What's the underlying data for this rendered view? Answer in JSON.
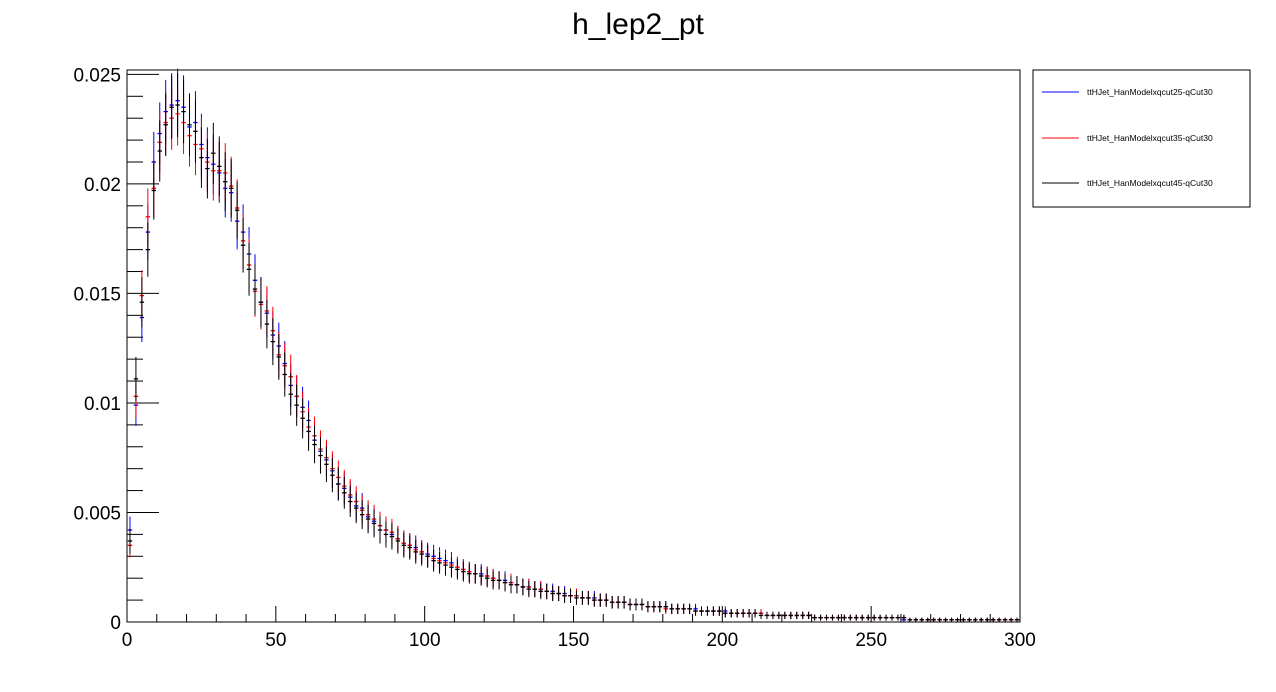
{
  "chart_data": {
    "type": "scatter",
    "title": "h_lep2_pt",
    "xlabel": "",
    "ylabel": "",
    "xlim": [
      0,
      300
    ],
    "ylim": [
      0,
      0.0252
    ],
    "x_ticks": [
      {
        "value": 0,
        "label": "0"
      },
      {
        "value": 50,
        "label": "50"
      },
      {
        "value": 100,
        "label": "100"
      },
      {
        "value": 150,
        "label": "150"
      },
      {
        "value": 200,
        "label": "200"
      },
      {
        "value": 250,
        "label": "250"
      },
      {
        "value": 300,
        "label": "300"
      }
    ],
    "y_ticks": [
      {
        "value": 0,
        "label": "0"
      },
      {
        "value": 0.005,
        "label": "0.005"
      },
      {
        "value": 0.01,
        "label": "0.01"
      },
      {
        "value": 0.015,
        "label": "0.015"
      },
      {
        "value": 0.02,
        "label": "0.02"
      },
      {
        "value": 0.025,
        "label": "0.025"
      }
    ],
    "grid": false,
    "legend_position": "right",
    "x_bin_start": 1,
    "x_bin_width": 2,
    "series": [
      {
        "name": "ttHJet_HanModelxqcut25-qCut30",
        "color": "#0000ff",
        "values": [
          0.0042,
          0.0099,
          0.0139,
          0.0178,
          0.021,
          0.0223,
          0.0233,
          0.0236,
          0.0238,
          0.0235,
          0.0226,
          0.0228,
          0.0218,
          0.0212,
          0.0209,
          0.0205,
          0.0198,
          0.0196,
          0.0183,
          0.0178,
          0.0168,
          0.0156,
          0.0146,
          0.0141,
          0.0131,
          0.0126,
          0.0118,
          0.0108,
          0.0103,
          0.0098,
          0.0092,
          0.0083,
          0.0078,
          0.0074,
          0.0069,
          0.0063,
          0.0061,
          0.0057,
          0.0053,
          0.0052,
          0.0048,
          0.0046,
          0.0044,
          0.0042,
          0.004,
          0.0038,
          0.0036,
          0.0035,
          0.0034,
          0.0032,
          0.0031,
          0.003,
          0.0029,
          0.0028,
          0.0027,
          0.0025,
          0.0024,
          0.0023,
          0.0022,
          0.0022,
          0.0021,
          0.002,
          0.0019,
          0.0019,
          0.0018,
          0.0017,
          0.0016,
          0.0016,
          0.0015,
          0.0015,
          0.0014,
          0.0014,
          0.0013,
          0.0013,
          0.0012,
          0.0012,
          0.0011,
          0.0011,
          0.0011,
          0.001,
          0.001,
          0.0009,
          0.0009,
          0.0009,
          0.0008,
          0.0008,
          0.0008,
          0.0007,
          0.0007,
          0.0007,
          0.0007,
          0.0006,
          0.0006,
          0.0006,
          0.0006,
          0.0006,
          0.0005,
          0.0005,
          0.0005,
          0.0005,
          0.0005,
          0.0004,
          0.0004,
          0.0004,
          0.0004,
          0.0004,
          0.0004,
          0.0003,
          0.0003,
          0.0003,
          0.0003,
          0.0003,
          0.0003,
          0.0003,
          0.0003,
          0.0002,
          0.0002,
          0.0002,
          0.0002,
          0.0002,
          0.0002,
          0.0002,
          0.0002,
          0.0002,
          0.0002,
          0.0002,
          0.0002,
          0.0002,
          0.0002,
          0.0002,
          0.0001,
          0.0001,
          0.0001,
          0.0001,
          0.0001,
          0.0001,
          0.0001,
          0.0001,
          0.0001,
          0.0001,
          0.0001,
          0.0001,
          0.0001,
          0.0001,
          0.0001,
          0.0001,
          0.0001,
          0.0001,
          0.0001,
          0.0001
        ]
      },
      {
        "name": "ttHJet_HanModelxqcut35-qCut30",
        "color": "#ff0000",
        "values": [
          0.0035,
          0.0103,
          0.0149,
          0.0185,
          0.0198,
          0.0219,
          0.0228,
          0.023,
          0.0232,
          0.0228,
          0.0222,
          0.0218,
          0.0216,
          0.021,
          0.0206,
          0.0206,
          0.0205,
          0.0199,
          0.0189,
          0.0174,
          0.0163,
          0.0151,
          0.0145,
          0.0142,
          0.0133,
          0.0122,
          0.0117,
          0.0112,
          0.0103,
          0.0096,
          0.0089,
          0.0085,
          0.0079,
          0.0075,
          0.007,
          0.0066,
          0.0062,
          0.0058,
          0.0055,
          0.0051,
          0.0049,
          0.0047,
          0.0044,
          0.0042,
          0.0041,
          0.0038,
          0.0036,
          0.0035,
          0.0033,
          0.0032,
          0.003,
          0.0029,
          0.0028,
          0.0027,
          0.0026,
          0.0025,
          0.0024,
          0.0023,
          0.0022,
          0.0021,
          0.0021,
          0.002,
          0.0019,
          0.0018,
          0.0018,
          0.0017,
          0.0016,
          0.0016,
          0.0015,
          0.0015,
          0.0014,
          0.0013,
          0.0013,
          0.0012,
          0.0012,
          0.0012,
          0.0011,
          0.0011,
          0.001,
          0.001,
          0.001,
          0.0009,
          0.0009,
          0.0009,
          0.0008,
          0.0008,
          0.0008,
          0.0007,
          0.0007,
          0.0007,
          0.0006,
          0.0006,
          0.0006,
          0.0006,
          0.0006,
          0.0005,
          0.0005,
          0.0005,
          0.0005,
          0.0005,
          0.0004,
          0.0004,
          0.0004,
          0.0004,
          0.0004,
          0.0004,
          0.0004,
          0.0003,
          0.0003,
          0.0003,
          0.0003,
          0.0003,
          0.0003,
          0.0003,
          0.0003,
          0.0002,
          0.0002,
          0.0002,
          0.0002,
          0.0002,
          0.0002,
          0.0002,
          0.0002,
          0.0002,
          0.0002,
          0.0002,
          0.0002,
          0.0002,
          0.0002,
          0.0002,
          0.0002,
          0.0001,
          0.0001,
          0.0001,
          0.0001,
          0.0001,
          0.0001,
          0.0001,
          0.0001,
          0.0001,
          0.0001,
          0.0001,
          0.0001,
          0.0001,
          0.0001,
          0.0001,
          0.0001,
          0.0001,
          0.0001,
          0.0001
        ]
      },
      {
        "name": "ttHJet_HanModelxqcut45-qCut30",
        "color": "#000000",
        "values": [
          0.0037,
          0.0111,
          0.0146,
          0.017,
          0.0197,
          0.0215,
          0.0227,
          0.0235,
          0.0236,
          0.0233,
          0.0227,
          0.0224,
          0.0212,
          0.0207,
          0.0214,
          0.0208,
          0.0201,
          0.0198,
          0.0188,
          0.0172,
          0.0161,
          0.0152,
          0.0146,
          0.0136,
          0.0128,
          0.0121,
          0.0113,
          0.0104,
          0.0099,
          0.0093,
          0.0087,
          0.0081,
          0.0076,
          0.0072,
          0.0067,
          0.0063,
          0.0059,
          0.0055,
          0.0052,
          0.0049,
          0.0047,
          0.0045,
          0.0042,
          0.004,
          0.0039,
          0.0037,
          0.0035,
          0.0034,
          0.0032,
          0.0031,
          0.003,
          0.0028,
          0.0027,
          0.0026,
          0.0025,
          0.0024,
          0.0023,
          0.0022,
          0.0022,
          0.0021,
          0.002,
          0.0019,
          0.0019,
          0.0018,
          0.0017,
          0.0017,
          0.0016,
          0.0015,
          0.0015,
          0.0014,
          0.0014,
          0.0013,
          0.0013,
          0.0012,
          0.0012,
          0.0011,
          0.0011,
          0.0011,
          0.001,
          0.001,
          0.001,
          0.0009,
          0.0009,
          0.0009,
          0.0008,
          0.0008,
          0.0008,
          0.0007,
          0.0007,
          0.0007,
          0.0007,
          0.0006,
          0.0006,
          0.0006,
          0.0006,
          0.0005,
          0.0005,
          0.0005,
          0.0005,
          0.0005,
          0.0004,
          0.0004,
          0.0004,
          0.0004,
          0.0004,
          0.0004,
          0.0003,
          0.0003,
          0.0003,
          0.0003,
          0.0003,
          0.0003,
          0.0003,
          0.0003,
          0.0003,
          0.0002,
          0.0002,
          0.0002,
          0.0002,
          0.0002,
          0.0002,
          0.0002,
          0.0002,
          0.0002,
          0.0002,
          0.0002,
          0.0002,
          0.0002,
          0.0002,
          0.0002,
          0.0002,
          0.0001,
          0.0001,
          0.0001,
          0.0001,
          0.0001,
          0.0001,
          0.0001,
          0.0001,
          0.0001,
          0.0001,
          0.0001,
          0.0001,
          0.0001,
          0.0001,
          0.0001,
          0.0001,
          0.0001,
          0.0001,
          0.0001
        ]
      }
    ]
  }
}
